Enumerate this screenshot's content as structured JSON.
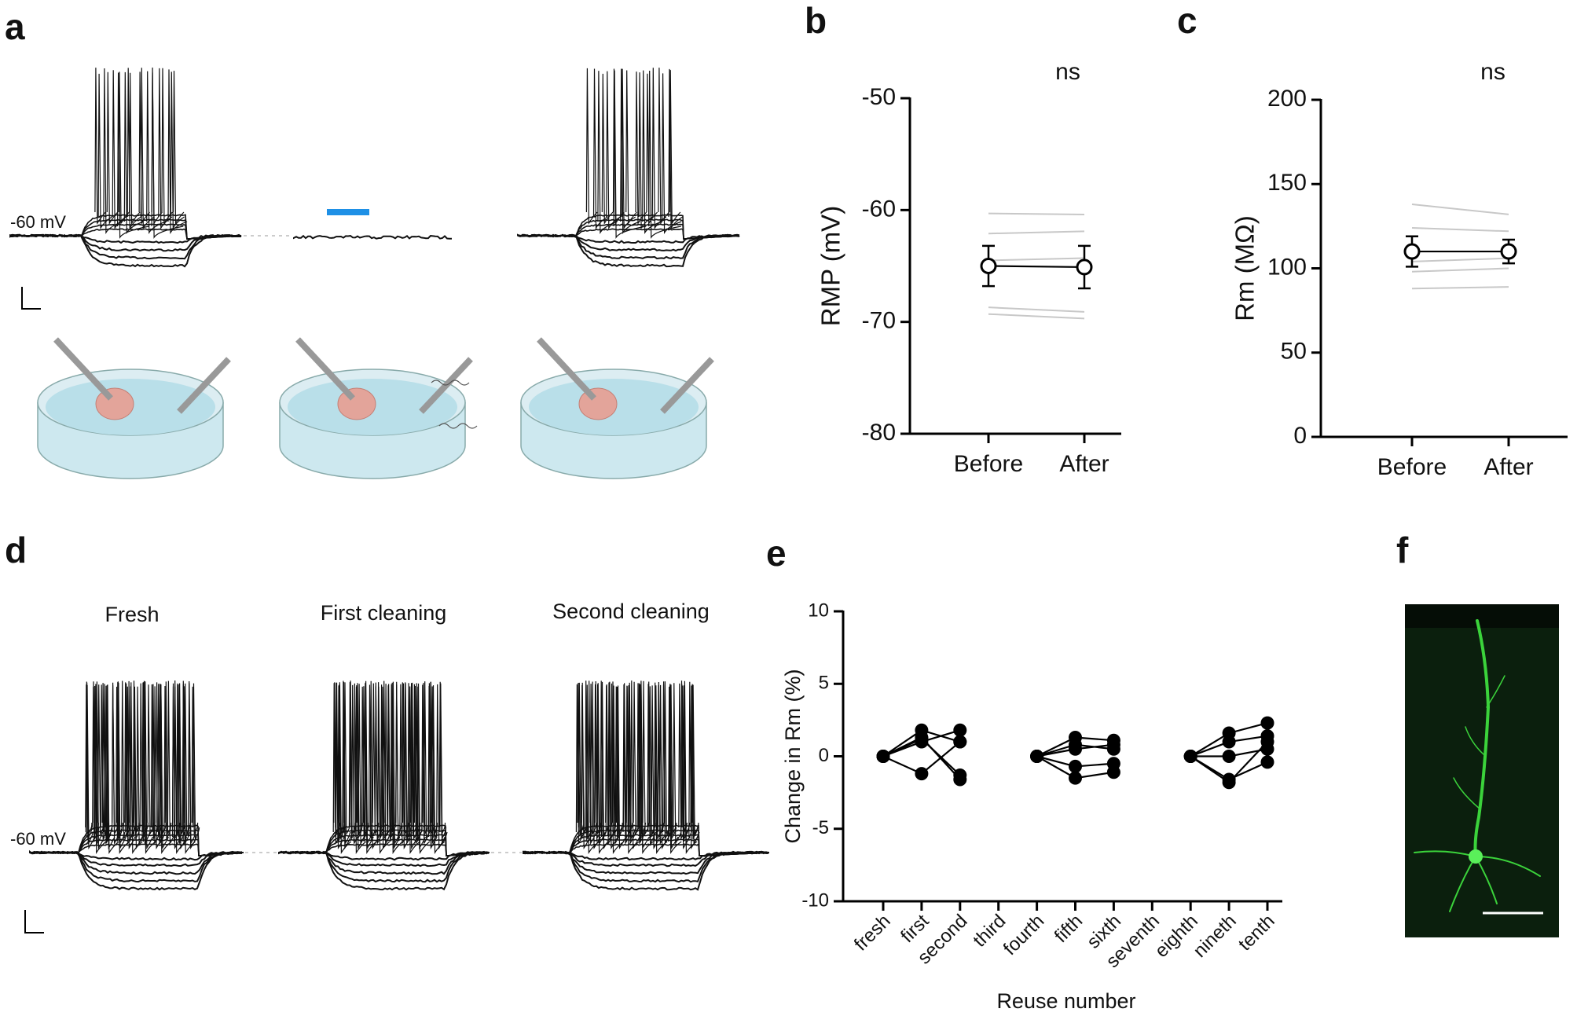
{
  "labels": {
    "panel_a": "a",
    "panel_b": "b",
    "panel_c": "c",
    "panel_d": "d",
    "panel_e": "e",
    "panel_f": "f",
    "a_holding": "-60 mV",
    "d_holding": "-60 mV",
    "d_conditions": [
      "Fresh",
      "First cleaning",
      "Second cleaning"
    ]
  },
  "chart_data": [
    {
      "type": "line",
      "title": "ns",
      "ylabel": "RMP (mV)",
      "categories": [
        "Before",
        "After"
      ],
      "ylim": [
        -80,
        -50
      ],
      "yticks": [
        -80,
        -70,
        -60,
        -50
      ],
      "series": [
        {
          "color": "#c8c8c8",
          "values": [
            -60.3,
            -60.4
          ]
        },
        {
          "color": "#c8c8c8",
          "values": [
            -62.1,
            -61.9
          ]
        },
        {
          "color": "#c8c8c8",
          "values": [
            -64.5,
            -64.3
          ]
        },
        {
          "color": "#c8c8c8",
          "values": [
            -68.7,
            -69.1
          ]
        },
        {
          "color": "#c8c8c8",
          "values": [
            -69.3,
            -69.7
          ]
        },
        {
          "color": "#000000",
          "values": [
            -65.0,
            -65.1
          ],
          "errors": [
            1.8,
            1.9
          ],
          "marker": "open-circle"
        }
      ]
    },
    {
      "type": "line",
      "title": "ns",
      "ylabel": "Rm (MΩ)",
      "categories": [
        "Before",
        "After"
      ],
      "ylim": [
        0,
        200
      ],
      "yticks": [
        0,
        50,
        100,
        150,
        200
      ],
      "series": [
        {
          "color": "#c8c8c8",
          "values": [
            138,
            132
          ]
        },
        {
          "color": "#c8c8c8",
          "values": [
            124,
            122
          ]
        },
        {
          "color": "#c8c8c8",
          "values": [
            104,
            106
          ]
        },
        {
          "color": "#c8c8c8",
          "values": [
            98,
            100
          ]
        },
        {
          "color": "#c8c8c8",
          "values": [
            88,
            89
          ]
        },
        {
          "color": "#000000",
          "values": [
            110,
            110
          ],
          "errors": [
            9,
            7
          ],
          "marker": "open-circle"
        }
      ]
    },
    {
      "type": "line",
      "xlabel": "Reuse number",
      "ylabel": "Change in Rm (%)",
      "categories": [
        "fresh",
        "first",
        "second",
        "third",
        "fourth",
        "fifth",
        "sixth",
        "seventh",
        "eighth",
        "nineth",
        "tenth"
      ],
      "ylim": [
        -10,
        10
      ],
      "yticks": [
        -10,
        -5,
        0,
        5,
        10
      ],
      "series": [
        {
          "color": "#000000",
          "marker": "filled-circle",
          "values": [
            0,
            1.8,
            1.0,
            null,
            0,
            1.3,
            1.1,
            null,
            0,
            1.6,
            2.3
          ]
        },
        {
          "color": "#000000",
          "marker": "filled-circle",
          "values": [
            0,
            1.3,
            -1.6,
            null,
            0,
            0.8,
            0.5,
            null,
            0,
            1.0,
            1.4
          ]
        },
        {
          "color": "#000000",
          "marker": "filled-circle",
          "values": [
            0,
            1.0,
            1.8,
            null,
            0,
            0.5,
            0.8,
            null,
            0,
            0,
            0.5
          ]
        },
        {
          "color": "#000000",
          "marker": "filled-circle",
          "values": [
            0,
            1.2,
            -1.3,
            null,
            0,
            -0.7,
            -0.5,
            null,
            0,
            -1.6,
            -0.4
          ]
        },
        {
          "color": "#000000",
          "marker": "filled-circle",
          "values": [
            0,
            -1.2,
            1.0,
            null,
            0,
            -1.5,
            -1.1,
            null,
            0,
            -1.8,
            1.0
          ]
        }
      ]
    }
  ]
}
